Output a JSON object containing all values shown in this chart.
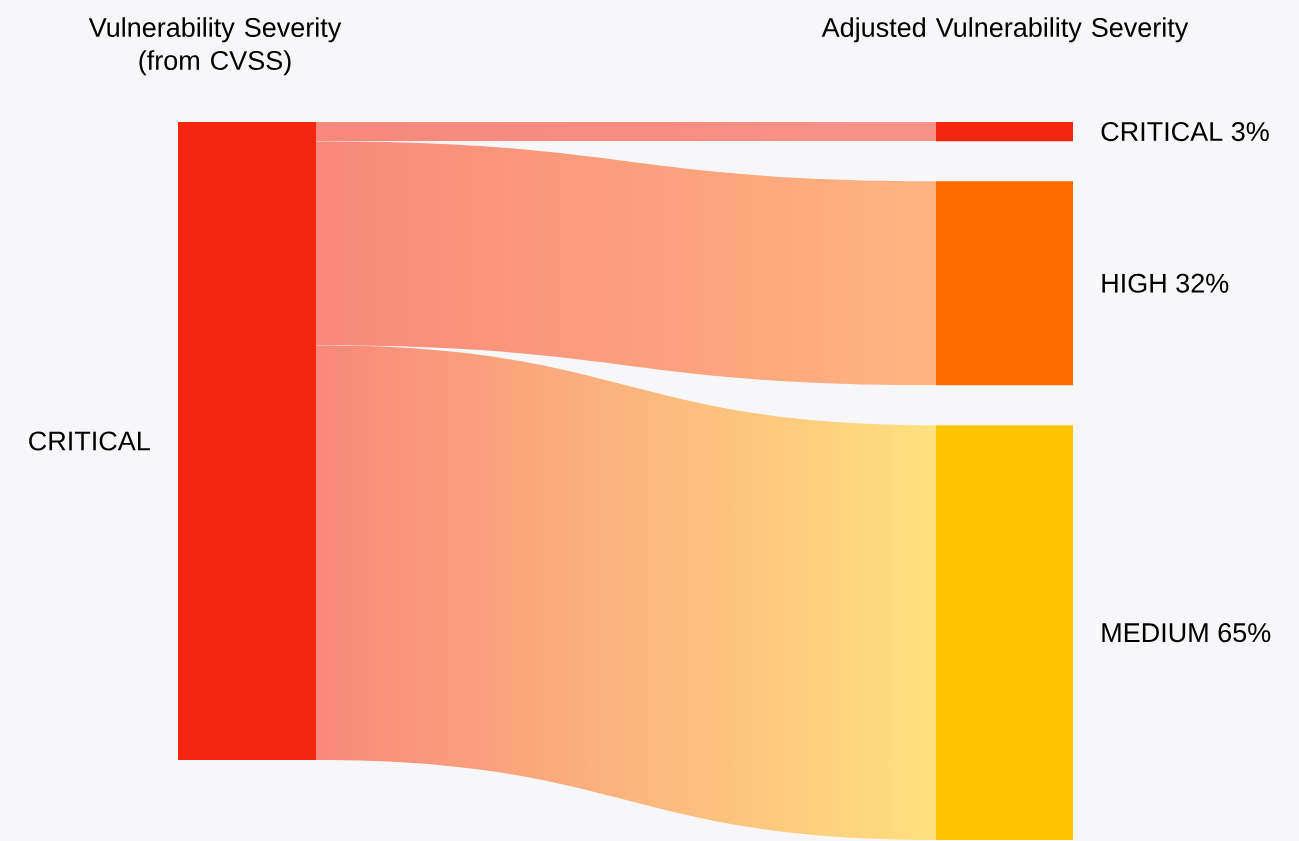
{
  "chart_data": {
    "type": "other",
    "annotations": [
      "Vulnerability Severity (from CVSS)",
      "Adjusted Vulnerability Severity"
    ],
    "ylabel": "CRITICAL",
    "color": "#f2260f",
    "categories": [
      "CRITICAL",
      "HIGH",
      "MEDIUM"
    ],
    "values": [
      3,
      32,
      65
    ],
    "value_labels": [
      "3%",
      "32%",
      "65%"
    ],
    "colors": [
      "#f2260f",
      "#ff6a00",
      "#ffc300"
    ]
  }
}
